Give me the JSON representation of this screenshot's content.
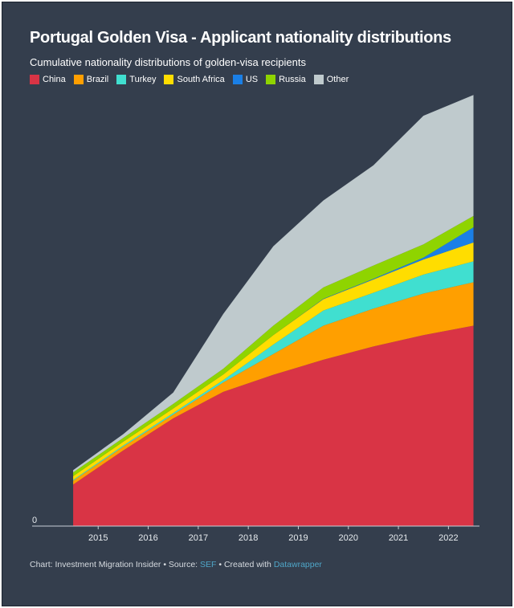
{
  "chart_data": {
    "type": "area",
    "title": "Portugal Golden Visa - Applicant nationality distributions",
    "subtitle": "Cumulative nationality distributions of golden-visa recipients",
    "x": [
      2014.5,
      2015.5,
      2016.5,
      2017.5,
      2018.5,
      2019.5,
      2020.5,
      2021.5,
      2022.5
    ],
    "series": [
      {
        "name": "China",
        "color": "#d93445",
        "values": [
          1100,
          2000,
          2850,
          3550,
          4000,
          4400,
          4750,
          5050,
          5300
        ]
      },
      {
        "name": "Brazil",
        "color": "#ff9f00",
        "values": [
          100,
          100,
          100,
          250,
          550,
          900,
          1000,
          1100,
          1150
        ]
      },
      {
        "name": "Turkey",
        "color": "#40dfd0",
        "values": [
          20,
          30,
          40,
          60,
          250,
          400,
          420,
          500,
          550
        ]
      },
      {
        "name": "South Africa",
        "color": "#ffdd00",
        "values": [
          100,
          100,
          120,
          150,
          250,
          300,
          350,
          400,
          500
        ]
      },
      {
        "name": "US",
        "color": "#1a7fe6",
        "values": [
          0,
          0,
          0,
          0,
          0,
          10,
          20,
          50,
          400
        ]
      },
      {
        "name": "Russia",
        "color": "#8fd400",
        "values": [
          100,
          100,
          120,
          150,
          250,
          300,
          350,
          350,
          300
        ]
      },
      {
        "name": "Other",
        "color": "#bfcacd",
        "values": [
          60,
          100,
          300,
          1450,
          2100,
          2300,
          2650,
          3400,
          3200
        ]
      }
    ],
    "xlim": [
      2013.68,
      2022.62
    ],
    "xticks": [
      2015,
      2016,
      2017,
      2018,
      2019,
      2020,
      2021,
      2022
    ],
    "ylim": [
      0,
      12000
    ],
    "yticks": [
      0
    ],
    "footer": [
      "Chart: Investment Migration Insider • Source: ",
      "SEF",
      " • Created with ",
      "Datawrapper"
    ]
  }
}
